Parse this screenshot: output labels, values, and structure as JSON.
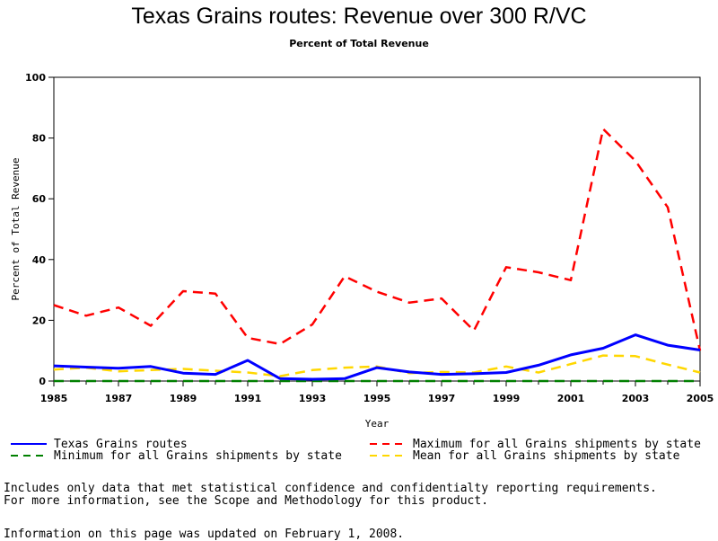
{
  "chart_data": {
    "type": "line",
    "title": "Texas Grains routes: Revenue over 300 R/VC",
    "subtitle": "Percent of Total Revenue",
    "xlabel": "Year",
    "ylabel": "Percent of Total Revenue",
    "xlim": [
      1985,
      2005
    ],
    "ylim": [
      0,
      100
    ],
    "x_ticks": [
      "1985",
      "1987",
      "1989",
      "1991",
      "1993",
      "1995",
      "1997",
      "1999",
      "2001",
      "2003",
      "2005"
    ],
    "y_ticks": [
      "0",
      "20",
      "40",
      "60",
      "80",
      "100"
    ],
    "x": [
      1985,
      1986,
      1987,
      1988,
      1989,
      1990,
      1991,
      1992,
      1993,
      1994,
      1995,
      1996,
      1997,
      1998,
      1999,
      2000,
      2001,
      2002,
      2003,
      2004,
      2005
    ],
    "series": [
      {
        "name": "Texas Grains routes",
        "color": "#0000ff",
        "style": "solid",
        "values": [
          5,
          4.6,
          4.2,
          4.8,
          2.6,
          2.2,
          6.8,
          0.8,
          0.6,
          0.8,
          4.4,
          3.0,
          2.2,
          2.4,
          2.8,
          5.2,
          8.6,
          10.8,
          15.2,
          11.8,
          10.2
        ]
      },
      {
        "name": "Maximum for all Grains shipments by state",
        "color": "#ff0000",
        "style": "dash",
        "values": [
          25,
          21.5,
          24.2,
          18.2,
          29.6,
          28.8,
          14.2,
          12.2,
          18.6,
          34.5,
          29.4,
          25.8,
          27.2,
          16.6,
          37.5,
          35.8,
          33.2,
          83.0,
          72.5,
          57.2,
          10.0
        ]
      },
      {
        "name": "Minimum for all Grains shipments by state",
        "color": "#008000",
        "style": "dash",
        "values": [
          0,
          0,
          0,
          0,
          0,
          0,
          0,
          0,
          0,
          0,
          0,
          0,
          0,
          0,
          0,
          0,
          0,
          0,
          0,
          0,
          0
        ]
      },
      {
        "name": "Mean for all Grains shipments by state",
        "color": "#ffd700",
        "style": "dash",
        "values": [
          3.8,
          4.4,
          3.2,
          3.6,
          4.0,
          3.4,
          2.8,
          1.6,
          3.6,
          4.4,
          4.8,
          2.6,
          3.0,
          2.8,
          4.8,
          2.8,
          5.6,
          8.4,
          8.2,
          5.4,
          2.8
        ]
      }
    ],
    "grid": false,
    "legend_position": "bottom"
  },
  "legend": [
    {
      "label": "Texas Grains routes",
      "color": "#0000ff",
      "style": "solid"
    },
    {
      "label": "Maximum for all Grains shipments by state",
      "color": "#ff0000",
      "style": "dash"
    },
    {
      "label": "Minimum for all Grains shipments by state",
      "color": "#008000",
      "style": "dash"
    },
    {
      "label": "Mean for all Grains shipments by state",
      "color": "#ffd700",
      "style": "dash"
    }
  ],
  "footnotes": {
    "line1": "Includes only data that met statistical confidence and confidentialty reporting requirements.",
    "line2": "For more information, see the Scope and Methodology for this product.",
    "updated": "Information on this page was updated on February 1, 2008."
  }
}
